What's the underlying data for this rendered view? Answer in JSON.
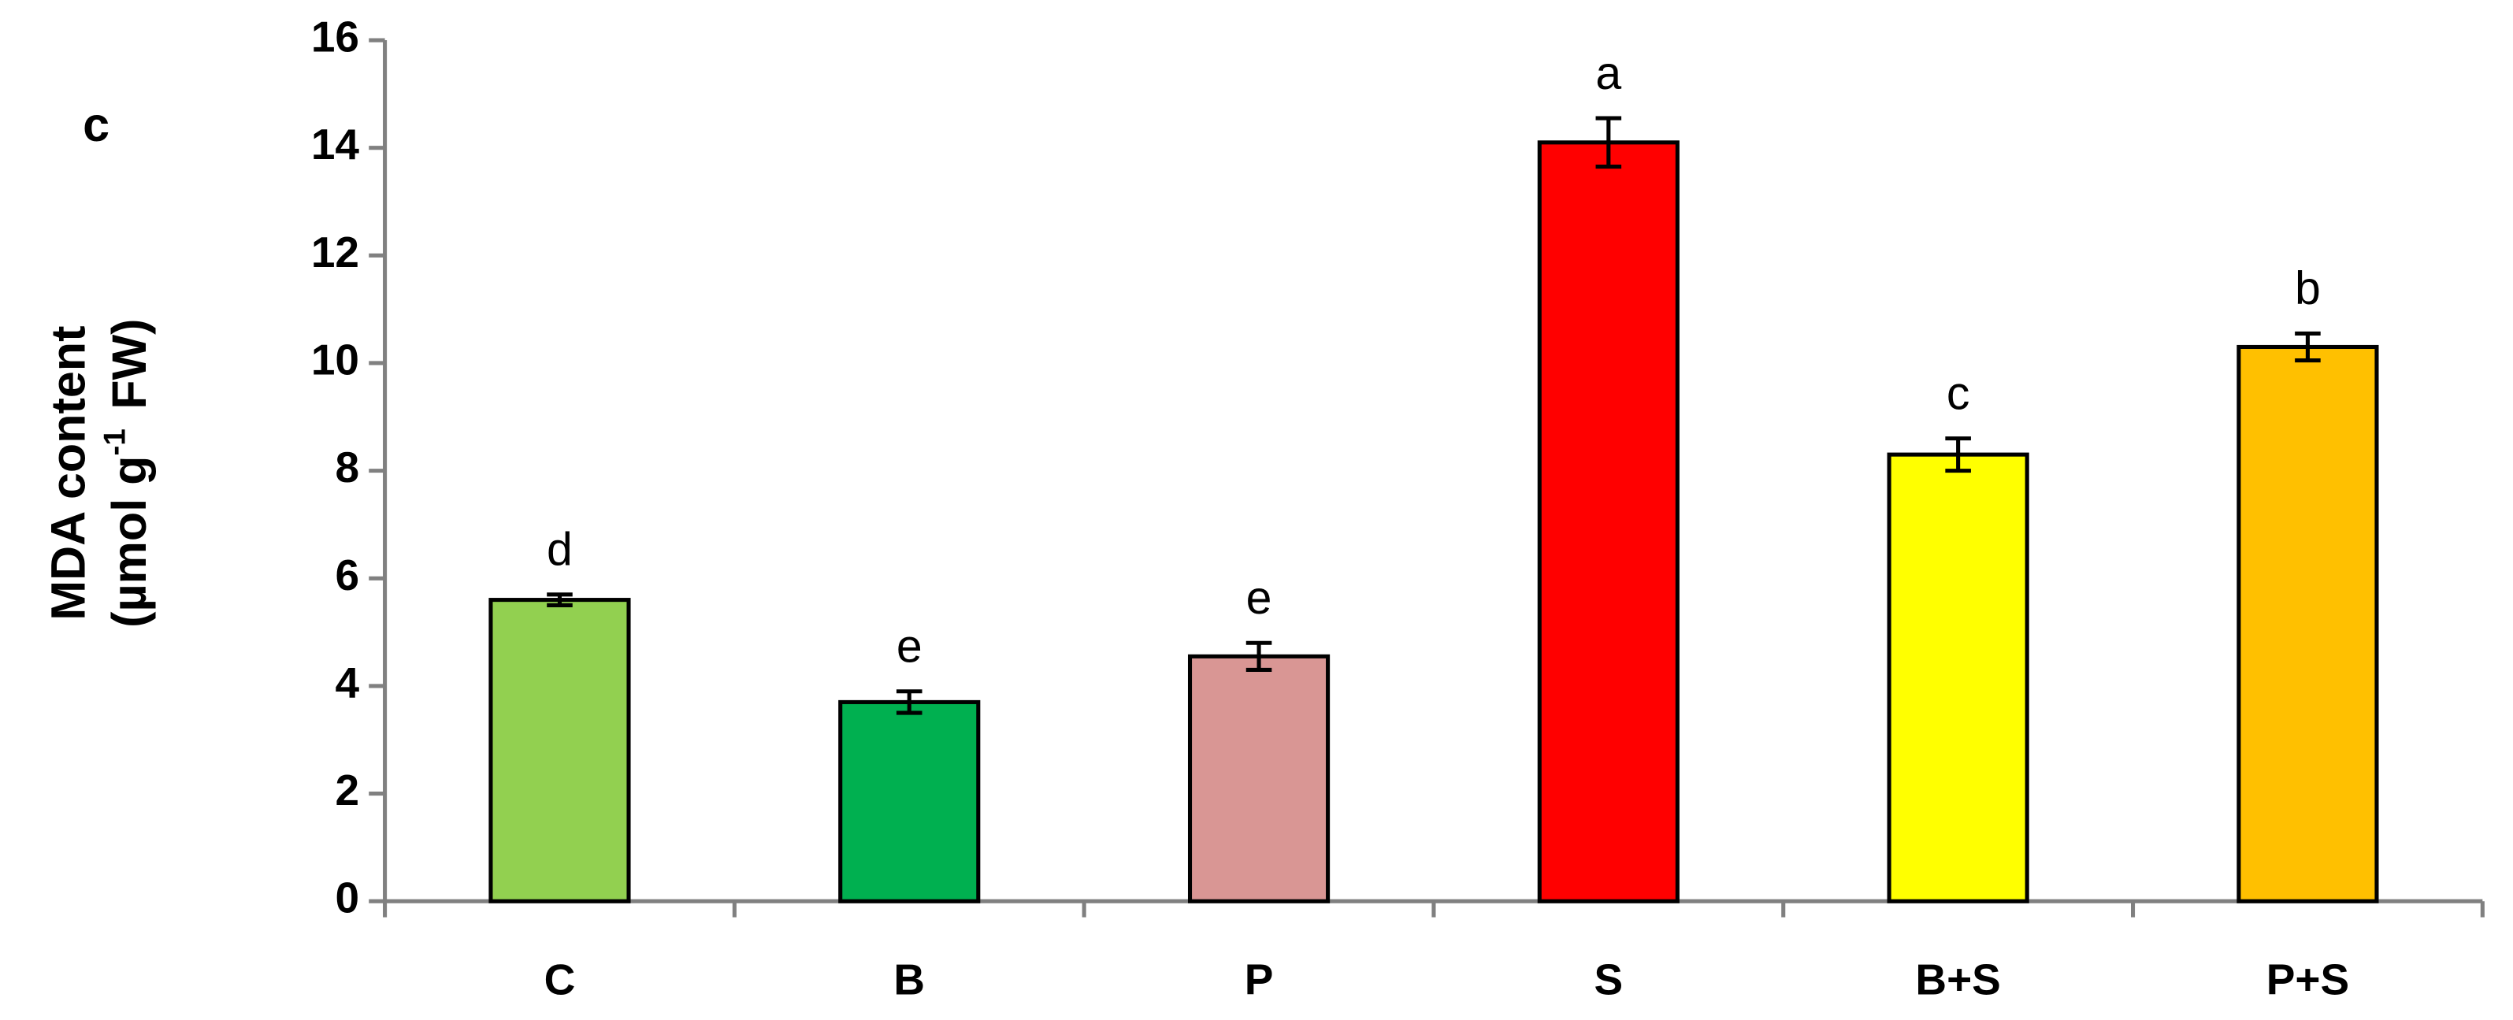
{
  "chart_data": {
    "type": "bar",
    "panel_label": "c",
    "ylabel": {
      "line1": "MDA  content",
      "line2_start": "(µmol g",
      "line2_superscript": "-1",
      "line2_end": "FW)"
    },
    "categories": [
      "C",
      "B",
      "P",
      "S",
      "B+S",
      "P+S"
    ],
    "values": [
      5.6,
      3.7,
      4.55,
      14.1,
      8.3,
      10.3
    ],
    "errors": [
      0.1,
      0.2,
      0.25,
      0.45,
      0.3,
      0.25
    ],
    "annotations": [
      "d",
      "e",
      "e",
      "a",
      "c",
      "b"
    ],
    "colors": [
      "#92d050",
      "#00b050",
      "#d99694",
      "#ff0000",
      "#ffff00",
      "#ffc000"
    ],
    "ylim": [
      0,
      16
    ],
    "yticks": [
      0,
      2,
      4,
      6,
      8,
      10,
      12,
      14,
      16
    ],
    "grid": false
  }
}
